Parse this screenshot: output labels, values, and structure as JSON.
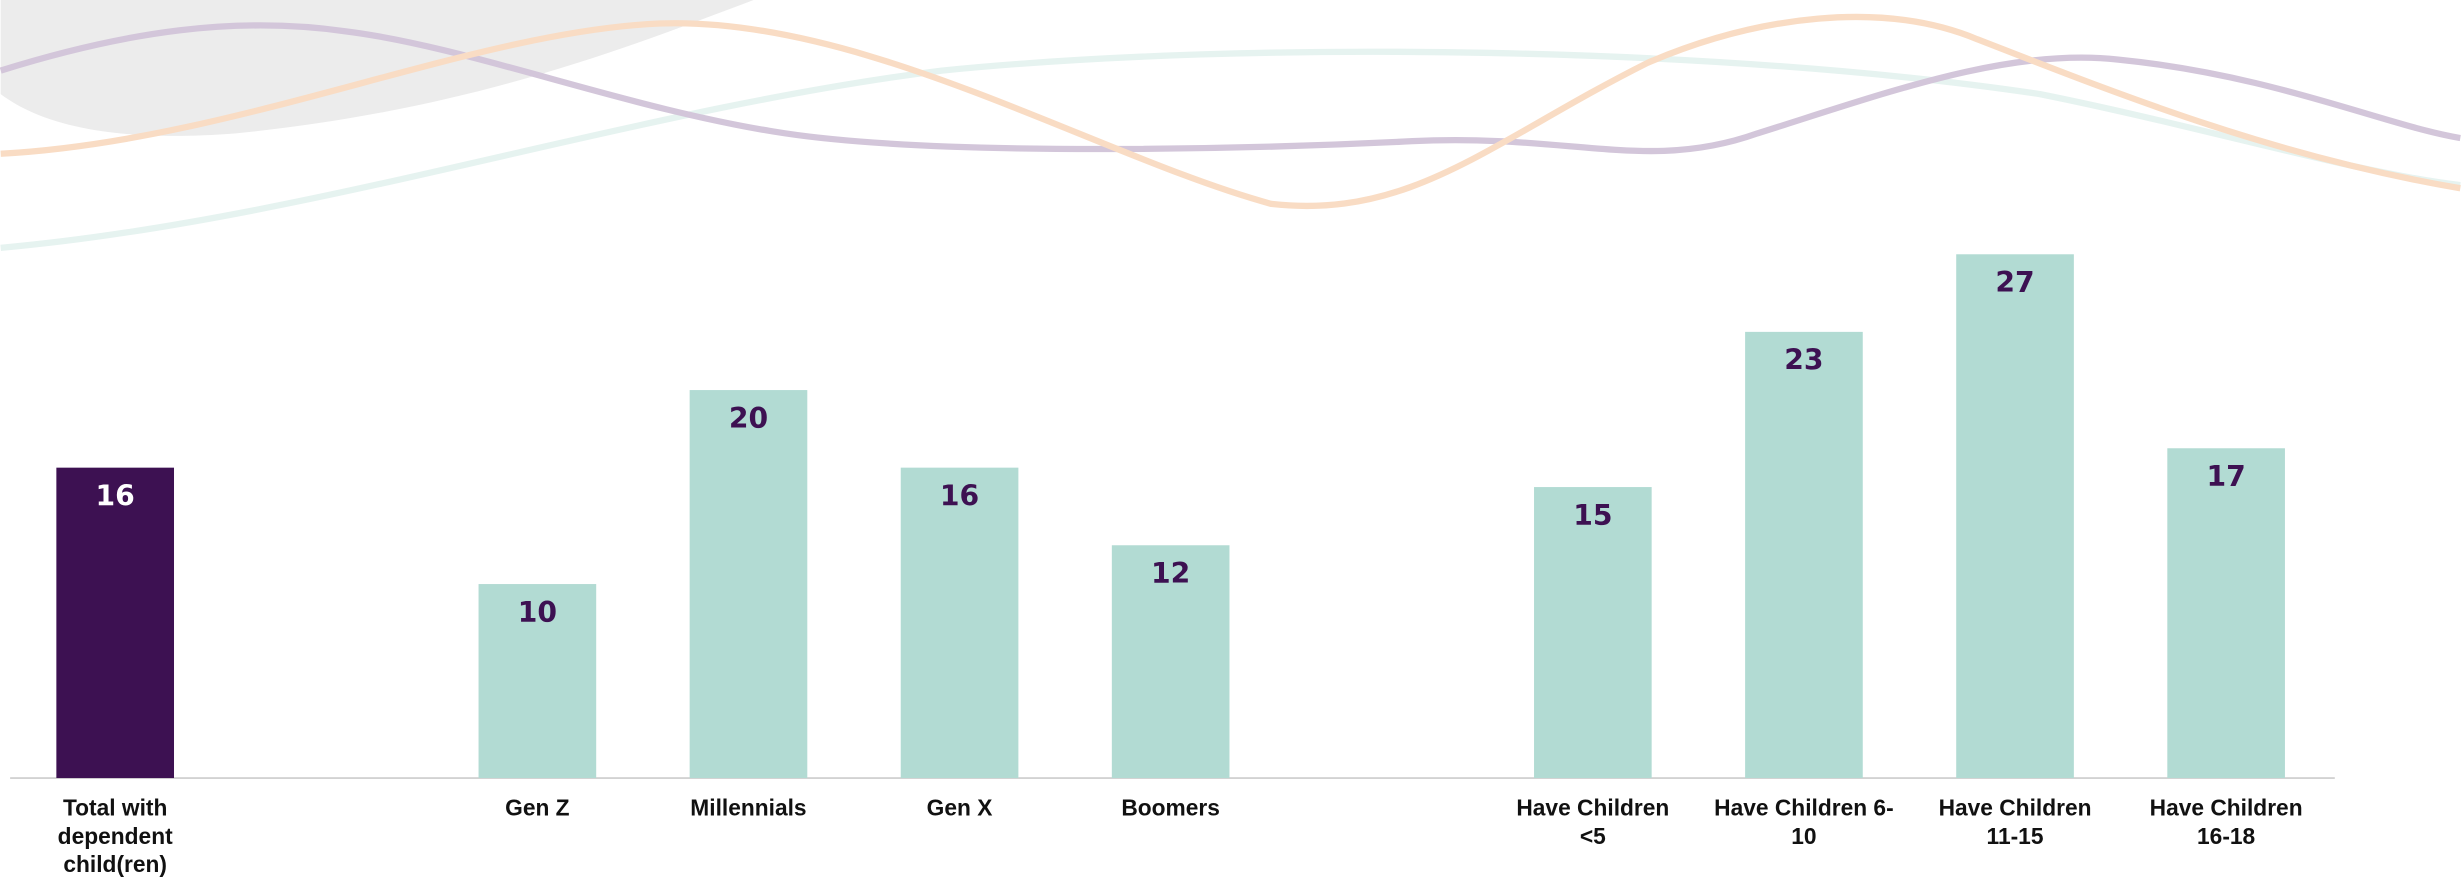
{
  "chart_data": {
    "type": "bar",
    "categories": [
      "Total with dependent child(ren)",
      null,
      "Gen Z",
      "Millennials",
      "Gen X",
      "Boomers",
      null,
      "Have Children <5",
      "Have Children 6-10",
      "Have Children 11-15",
      "Have Children 16-18"
    ],
    "values": [
      16,
      null,
      10,
      20,
      16,
      12,
      null,
      15,
      23,
      27,
      17
    ],
    "colors": [
      "#3d1152",
      null,
      "#b2dbd3",
      "#b2dbd3",
      "#b2dbd3",
      "#b2dbd3",
      null,
      "#b2dbd3",
      "#b2dbd3",
      "#b2dbd3",
      "#b2dbd3"
    ],
    "ylim": [
      0,
      30
    ]
  }
}
